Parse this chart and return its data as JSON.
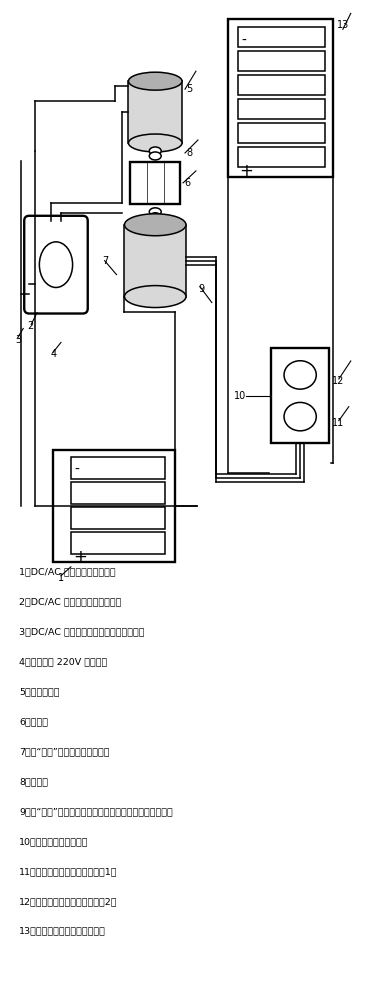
{
  "title": "",
  "bg_color": "#ffffff",
  "legend_items": [
    "1、DC/AC 转换器专用蓄电池组",
    "2、DC/AC 大功率绍正弦波逆变器",
    "3、DC/AC 大功率绍正弦波逆变器电源开关",
    "4、二次市电 220V 交流电源",
    "5、交流电动机",
    "6、变速筱",
    "7、无“风叶”永磁动力风力发电机",
    "8、联轴器",
    "9、无“风叶”永磁动力风力发电机输出三相机械交流电源线",
    "10、大功率可控硅充电器",
    "11、大功率可控硅充电器端口（1）",
    "12、大功率可控硅充电器端口（2）",
    "13、大容量串联型铅酸蓄电池组"
  ]
}
